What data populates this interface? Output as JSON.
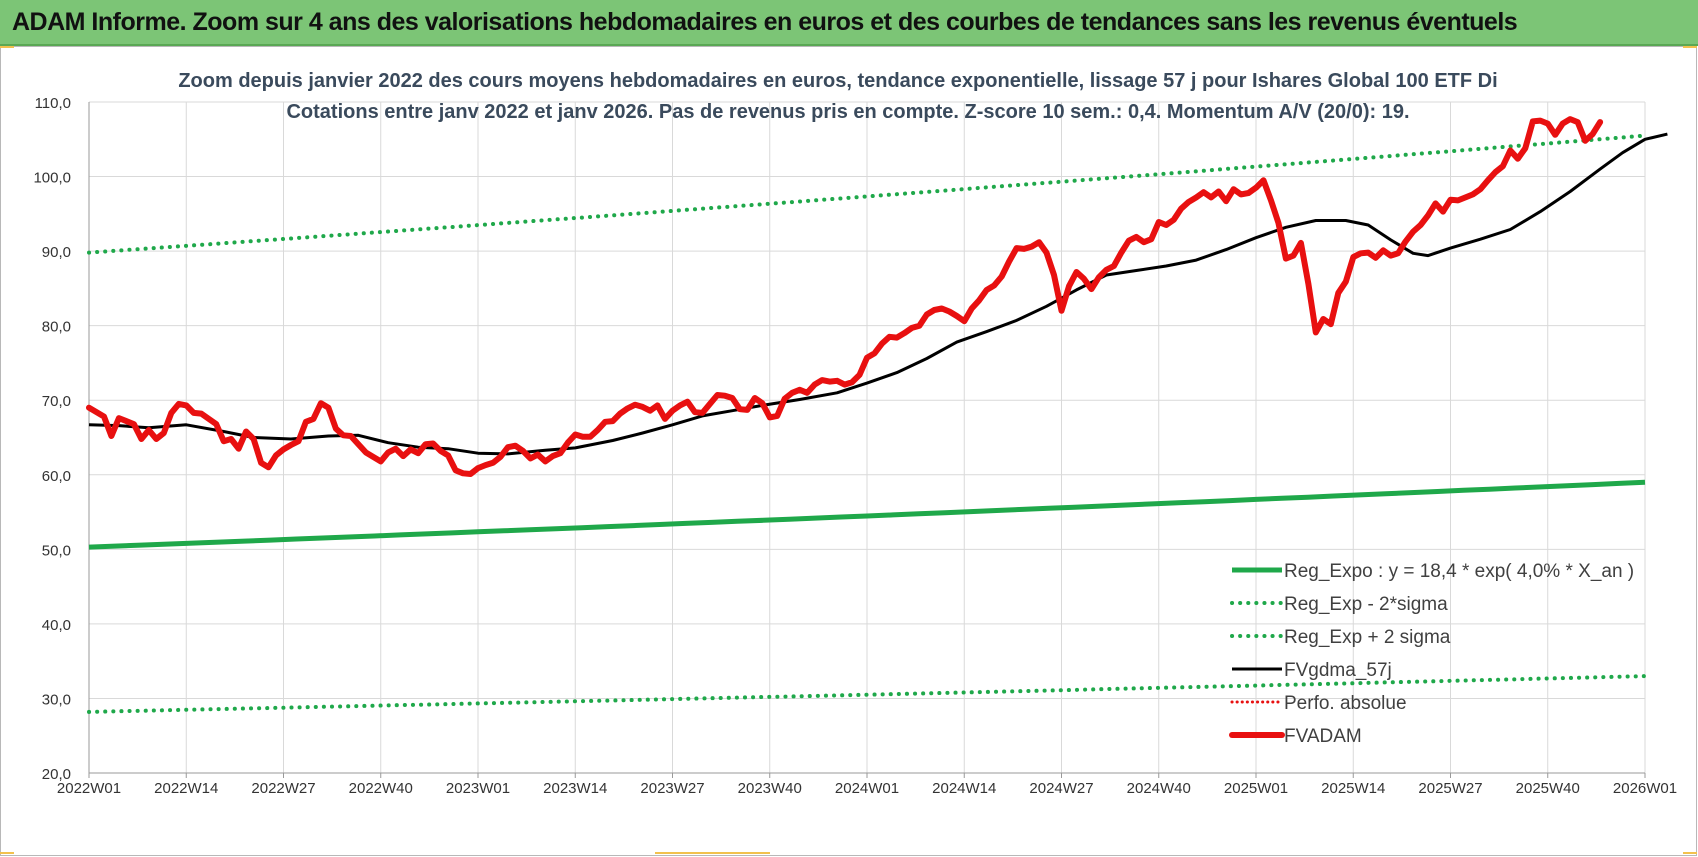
{
  "banner": {
    "title": "ADAM Informe. Zoom sur 4 ans des valorisations hebdomadaires en euros et des courbes de tendances sans les revenus éventuels"
  },
  "colors": {
    "banner": "#7cc576",
    "reg_expo": "#1fa84a",
    "fvadam": "#e81010",
    "fvgdma": "#000000",
    "perfo": "#e81010",
    "title_text": "#3a4a5c"
  },
  "chart_data": {
    "type": "line",
    "title_lines": [
      "Zoom depuis janvier 2022 des cours moyens hebdomadaires en euros, tendance exponentielle, lissage 57 j pour Ishares Global 100 ETF Di",
      "Cotations entre janv 2022 et janv 2026. Pas de revenus pris en compte. Z-score 10 sem.: 0,4. Momentum A/V (20/0): 19."
    ],
    "ylim": [
      20,
      110
    ],
    "y_ticks": [
      "20,0",
      "30,0",
      "40,0",
      "50,0",
      "60,0",
      "70,0",
      "80,0",
      "90,0",
      "100,0",
      "110,0"
    ],
    "x_ticks": [
      "2022W01",
      "2022W14",
      "2022W27",
      "2022W40",
      "2023W01",
      "2023W14",
      "2023W27",
      "2023W40",
      "2024W01",
      "2024W14",
      "2024W27",
      "2024W40",
      "2025W01",
      "2025W14",
      "2025W27",
      "2025W40",
      "2026W01"
    ],
    "x_range_weeks": [
      0,
      208
    ],
    "legend": [
      {
        "key": "reg_expo",
        "label": "Reg_Expo : y = 18,4 * exp( 4,0% *  X_an )",
        "style": "solid-green"
      },
      {
        "key": "reg_minus",
        "label": "Reg_Exp - 2*sigma",
        "style": "dotted-green"
      },
      {
        "key": "reg_plus",
        "label": "Reg_Exp + 2 sigma",
        "style": "dotted-green"
      },
      {
        "key": "fvgdma",
        "label": "FVgdma_57j",
        "style": "solid-black"
      },
      {
        "key": "perfo",
        "label": "Perfo. absolue",
        "style": "dotted-red"
      },
      {
        "key": "fvadam",
        "label": "FVADAM",
        "style": "thick-red"
      }
    ],
    "series": [
      {
        "key": "reg_expo",
        "name": "Reg_Expo",
        "endpoints": [
          [
            0,
            50.3
          ],
          [
            208,
            59.0
          ]
        ]
      },
      {
        "key": "reg_minus",
        "name": "Reg_Exp - 2*sigma",
        "endpoints": [
          [
            0,
            28.2
          ],
          [
            208,
            33.0
          ]
        ]
      },
      {
        "key": "reg_plus",
        "name": "Reg_Exp + 2 sigma",
        "endpoints": [
          [
            0,
            89.8
          ],
          [
            208,
            105.5
          ]
        ]
      },
      {
        "key": "fvgdma",
        "name": "FVgdma_57j",
        "points": [
          [
            0,
            66.7
          ],
          [
            4,
            66.6
          ],
          [
            8,
            66.3
          ],
          [
            13,
            66.7
          ],
          [
            18,
            65.8
          ],
          [
            22,
            65.0
          ],
          [
            27,
            64.8
          ],
          [
            32,
            65.2
          ],
          [
            36,
            65.3
          ],
          [
            40,
            64.3
          ],
          [
            44,
            63.7
          ],
          [
            48,
            63.5
          ],
          [
            52,
            62.9
          ],
          [
            56,
            62.8
          ],
          [
            61,
            63.3
          ],
          [
            65,
            63.6
          ],
          [
            70,
            64.6
          ],
          [
            74,
            65.6
          ],
          [
            78,
            66.7
          ],
          [
            82,
            67.9
          ],
          [
            86,
            68.6
          ],
          [
            90,
            69.3
          ],
          [
            95,
            70.1
          ],
          [
            100,
            71.0
          ],
          [
            104,
            72.3
          ],
          [
            108,
            73.7
          ],
          [
            112,
            75.6
          ],
          [
            116,
            77.8
          ],
          [
            120,
            79.2
          ],
          [
            124,
            80.7
          ],
          [
            128,
            82.6
          ],
          [
            132,
            84.8
          ],
          [
            136,
            86.8
          ],
          [
            140,
            87.4
          ],
          [
            144,
            88.0
          ],
          [
            148,
            88.8
          ],
          [
            152,
            90.2
          ],
          [
            156,
            91.8
          ],
          [
            160,
            93.2
          ],
          [
            164,
            94.1
          ],
          [
            168,
            94.1
          ],
          [
            171,
            93.5
          ],
          [
            174,
            91.5
          ],
          [
            177,
            89.7
          ],
          [
            179,
            89.4
          ],
          [
            182,
            90.4
          ],
          [
            186,
            91.6
          ],
          [
            190,
            92.9
          ],
          [
            194,
            95.3
          ],
          [
            198,
            98.0
          ],
          [
            202,
            101.0
          ],
          [
            205,
            103.2
          ],
          [
            208,
            105.0
          ],
          [
            211,
            105.7
          ]
        ]
      },
      {
        "key": "fvadam",
        "name": "FVADAM",
        "points": [
          [
            0,
            69.0
          ],
          [
            2,
            67.8
          ],
          [
            3,
            65.2
          ],
          [
            4,
            67.6
          ],
          [
            6,
            66.8
          ],
          [
            7,
            64.8
          ],
          [
            8,
            66.0
          ],
          [
            9,
            64.8
          ],
          [
            10,
            65.6
          ],
          [
            11,
            68.3
          ],
          [
            12,
            69.5
          ],
          [
            13,
            69.3
          ],
          [
            14,
            68.3
          ],
          [
            15,
            68.2
          ],
          [
            17,
            66.8
          ],
          [
            18,
            64.5
          ],
          [
            19,
            64.8
          ],
          [
            20,
            63.5
          ],
          [
            21,
            65.8
          ],
          [
            22,
            64.8
          ],
          [
            23,
            61.6
          ],
          [
            24,
            61.0
          ],
          [
            25,
            62.6
          ],
          [
            26,
            63.4
          ],
          [
            27,
            64.0
          ],
          [
            28,
            64.5
          ],
          [
            29,
            67.1
          ],
          [
            30,
            67.5
          ],
          [
            31,
            69.6
          ],
          [
            32,
            69.0
          ],
          [
            33,
            66.2
          ],
          [
            34,
            65.3
          ],
          [
            35,
            65.2
          ],
          [
            37,
            63.0
          ],
          [
            38,
            62.4
          ],
          [
            39,
            61.8
          ],
          [
            40,
            63.0
          ],
          [
            41,
            63.5
          ],
          [
            42,
            62.5
          ],
          [
            43,
            63.4
          ],
          [
            44,
            62.9
          ],
          [
            45,
            64.1
          ],
          [
            46,
            64.2
          ],
          [
            47,
            63.2
          ],
          [
            48,
            62.6
          ],
          [
            49,
            60.6
          ],
          [
            50,
            60.2
          ],
          [
            51,
            60.1
          ],
          [
            52,
            60.9
          ],
          [
            53,
            61.3
          ],
          [
            54,
            61.6
          ],
          [
            55,
            62.4
          ],
          [
            56,
            63.7
          ],
          [
            57,
            63.9
          ],
          [
            58,
            63.2
          ],
          [
            59,
            62.2
          ],
          [
            60,
            62.7
          ],
          [
            61,
            61.8
          ],
          [
            62,
            62.5
          ],
          [
            63,
            62.9
          ],
          [
            64,
            64.3
          ],
          [
            65,
            65.4
          ],
          [
            66,
            65.1
          ],
          [
            67,
            65.1
          ],
          [
            68,
            66.0
          ],
          [
            69,
            67.1
          ],
          [
            70,
            67.2
          ],
          [
            71,
            68.2
          ],
          [
            72,
            68.9
          ],
          [
            73,
            69.4
          ],
          [
            74,
            69.1
          ],
          [
            75,
            68.6
          ],
          [
            76,
            69.3
          ],
          [
            77,
            67.5
          ],
          [
            78,
            68.6
          ],
          [
            79,
            69.3
          ],
          [
            80,
            69.8
          ],
          [
            81,
            68.4
          ],
          [
            82,
            68.3
          ],
          [
            83,
            69.5
          ],
          [
            84,
            70.7
          ],
          [
            85,
            70.6
          ],
          [
            86,
            70.3
          ],
          [
            87,
            68.8
          ],
          [
            88,
            68.7
          ],
          [
            89,
            70.3
          ],
          [
            90,
            69.6
          ],
          [
            91,
            67.7
          ],
          [
            92,
            67.9
          ],
          [
            93,
            70.2
          ],
          [
            94,
            71.0
          ],
          [
            95,
            71.4
          ],
          [
            96,
            71.0
          ],
          [
            97,
            72.1
          ],
          [
            98,
            72.7
          ],
          [
            99,
            72.5
          ],
          [
            100,
            72.6
          ],
          [
            101,
            72.1
          ],
          [
            102,
            72.4
          ],
          [
            103,
            73.4
          ],
          [
            104,
            75.7
          ],
          [
            105,
            76.3
          ],
          [
            106,
            77.6
          ],
          [
            107,
            78.5
          ],
          [
            108,
            78.4
          ],
          [
            109,
            79.0
          ],
          [
            110,
            79.7
          ],
          [
            111,
            80.0
          ],
          [
            112,
            81.5
          ],
          [
            113,
            82.1
          ],
          [
            114,
            82.3
          ],
          [
            115,
            81.9
          ],
          [
            116,
            81.3
          ],
          [
            117,
            80.6
          ],
          [
            118,
            82.3
          ],
          [
            119,
            83.4
          ],
          [
            120,
            84.8
          ],
          [
            121,
            85.4
          ],
          [
            122,
            86.6
          ],
          [
            123,
            88.6
          ],
          [
            124,
            90.4
          ],
          [
            125,
            90.3
          ],
          [
            126,
            90.6
          ],
          [
            127,
            91.2
          ],
          [
            128,
            89.8
          ],
          [
            129,
            86.8
          ],
          [
            130,
            82.0
          ],
          [
            131,
            85.3
          ],
          [
            132,
            87.2
          ],
          [
            133,
            86.3
          ],
          [
            134,
            84.9
          ],
          [
            135,
            86.5
          ],
          [
            136,
            87.5
          ],
          [
            137,
            88.0
          ],
          [
            138,
            89.8
          ],
          [
            139,
            91.4
          ],
          [
            140,
            91.9
          ],
          [
            141,
            91.2
          ],
          [
            142,
            91.6
          ],
          [
            143,
            93.9
          ],
          [
            144,
            93.5
          ],
          [
            145,
            94.2
          ],
          [
            146,
            95.7
          ],
          [
            147,
            96.6
          ],
          [
            148,
            97.2
          ],
          [
            149,
            97.9
          ],
          [
            150,
            97.2
          ],
          [
            151,
            98.0
          ],
          [
            152,
            96.7
          ],
          [
            153,
            98.3
          ],
          [
            154,
            97.6
          ],
          [
            155,
            97.8
          ],
          [
            156,
            98.5
          ],
          [
            157,
            99.5
          ],
          [
            158,
            96.8
          ],
          [
            159,
            93.8
          ],
          [
            160,
            89.0
          ],
          [
            161,
            89.4
          ],
          [
            162,
            91.1
          ],
          [
            163,
            85.6
          ],
          [
            164,
            79.1
          ],
          [
            165,
            80.9
          ],
          [
            166,
            80.2
          ],
          [
            167,
            84.4
          ],
          [
            168,
            85.9
          ],
          [
            169,
            89.2
          ],
          [
            170,
            89.7
          ],
          [
            171,
            89.8
          ],
          [
            172,
            89.1
          ],
          [
            173,
            90.1
          ],
          [
            174,
            89.4
          ],
          [
            175,
            89.7
          ],
          [
            176,
            91.3
          ],
          [
            177,
            92.6
          ],
          [
            178,
            93.5
          ],
          [
            179,
            94.8
          ],
          [
            180,
            96.4
          ],
          [
            181,
            95.3
          ],
          [
            182,
            96.9
          ],
          [
            183,
            96.8
          ],
          [
            184,
            97.2
          ],
          [
            185,
            97.6
          ],
          [
            186,
            98.3
          ],
          [
            187,
            99.5
          ],
          [
            188,
            100.6
          ],
          [
            189,
            101.4
          ],
          [
            190,
            103.5
          ],
          [
            191,
            102.4
          ],
          [
            192,
            103.8
          ],
          [
            193,
            107.4
          ],
          [
            194,
            107.5
          ],
          [
            195,
            107.1
          ],
          [
            196,
            105.6
          ],
          [
            197,
            107.1
          ],
          [
            198,
            107.7
          ],
          [
            199,
            107.3
          ],
          [
            200,
            104.8
          ],
          [
            201,
            105.7
          ],
          [
            202,
            107.3
          ]
        ]
      }
    ]
  }
}
